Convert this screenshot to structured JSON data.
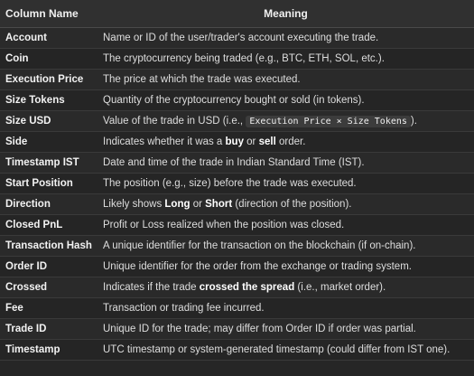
{
  "headers": {
    "column_name": "Column Name",
    "meaning": "Meaning"
  },
  "rows": [
    {
      "name": "Account",
      "meaning": [
        {
          "t": "Name or ID of the user/trader's account executing the trade."
        }
      ]
    },
    {
      "name": "Coin",
      "meaning": [
        {
          "t": "The cryptocurrency being traded (e.g., BTC, ETH, SOL, etc.)."
        }
      ]
    },
    {
      "name": "Execution Price",
      "meaning": [
        {
          "t": "The price at which the trade was executed."
        }
      ]
    },
    {
      "name": "Size Tokens",
      "meaning": [
        {
          "t": "Quantity of the cryptocurrency bought or sold (in tokens)."
        }
      ]
    },
    {
      "name": "Size USD",
      "meaning": [
        {
          "t": "Value of the trade in USD (i.e., "
        },
        {
          "t": "Execution Price × Size Tokens",
          "s": "code"
        },
        {
          "t": ")."
        }
      ]
    },
    {
      "name": "Side",
      "meaning": [
        {
          "t": "Indicates whether it was a "
        },
        {
          "t": "buy",
          "s": "bold"
        },
        {
          "t": " or "
        },
        {
          "t": "sell",
          "s": "bold"
        },
        {
          "t": " order."
        }
      ]
    },
    {
      "name": "Timestamp IST",
      "meaning": [
        {
          "t": "Date and time of the trade in Indian Standard Time (IST)."
        }
      ]
    },
    {
      "name": "Start Position",
      "meaning": [
        {
          "t": "The position (e.g., size) before the trade was executed."
        }
      ]
    },
    {
      "name": "Direction",
      "meaning": [
        {
          "t": "Likely shows "
        },
        {
          "t": "Long",
          "s": "bold"
        },
        {
          "t": " or "
        },
        {
          "t": "Short",
          "s": "bold"
        },
        {
          "t": " (direction of the position)."
        }
      ]
    },
    {
      "name": "Closed PnL",
      "meaning": [
        {
          "t": "Profit or Loss realized when the position was closed."
        }
      ]
    },
    {
      "name": "Transaction Hash",
      "meaning": [
        {
          "t": "A unique identifier for the transaction on the blockchain (if on-chain)."
        }
      ]
    },
    {
      "name": "Order ID",
      "meaning": [
        {
          "t": "Unique identifier for the order from the exchange or trading system."
        }
      ]
    },
    {
      "name": "Crossed",
      "meaning": [
        {
          "t": "Indicates if the trade "
        },
        {
          "t": "crossed the spread",
          "s": "bold"
        },
        {
          "t": " (i.e., market order)."
        }
      ]
    },
    {
      "name": "Fee",
      "meaning": [
        {
          "t": "Transaction or trading fee incurred."
        }
      ]
    },
    {
      "name": "Trade ID",
      "meaning": [
        {
          "t": "Unique ID for the trade; may differ from Order ID if order was partial."
        }
      ]
    },
    {
      "name": "Timestamp",
      "meaning": [
        {
          "t": "UTC timestamp or system-generated timestamp (could differ from IST one)."
        }
      ]
    }
  ]
}
